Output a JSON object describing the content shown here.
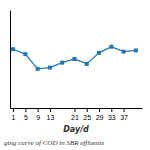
{
  "chart_data": {
    "type": "line",
    "x": [
      1,
      5,
      9,
      13,
      17,
      21,
      25,
      29,
      33,
      37,
      41
    ],
    "values": [
      68,
      64,
      52,
      53,
      57,
      60,
      56,
      65,
      70,
      66,
      67
    ],
    "xlabel": "Day/d",
    "caption": "ging curve of COD in SBR effluents",
    "xlim": [
      0,
      43
    ],
    "xticks": [
      1,
      5,
      9,
      13,
      21,
      25,
      29,
      33,
      37
    ],
    "ylim": [
      20,
      100
    ],
    "yticks": [],
    "tick_labels": "x",
    "marker": "square"
  }
}
